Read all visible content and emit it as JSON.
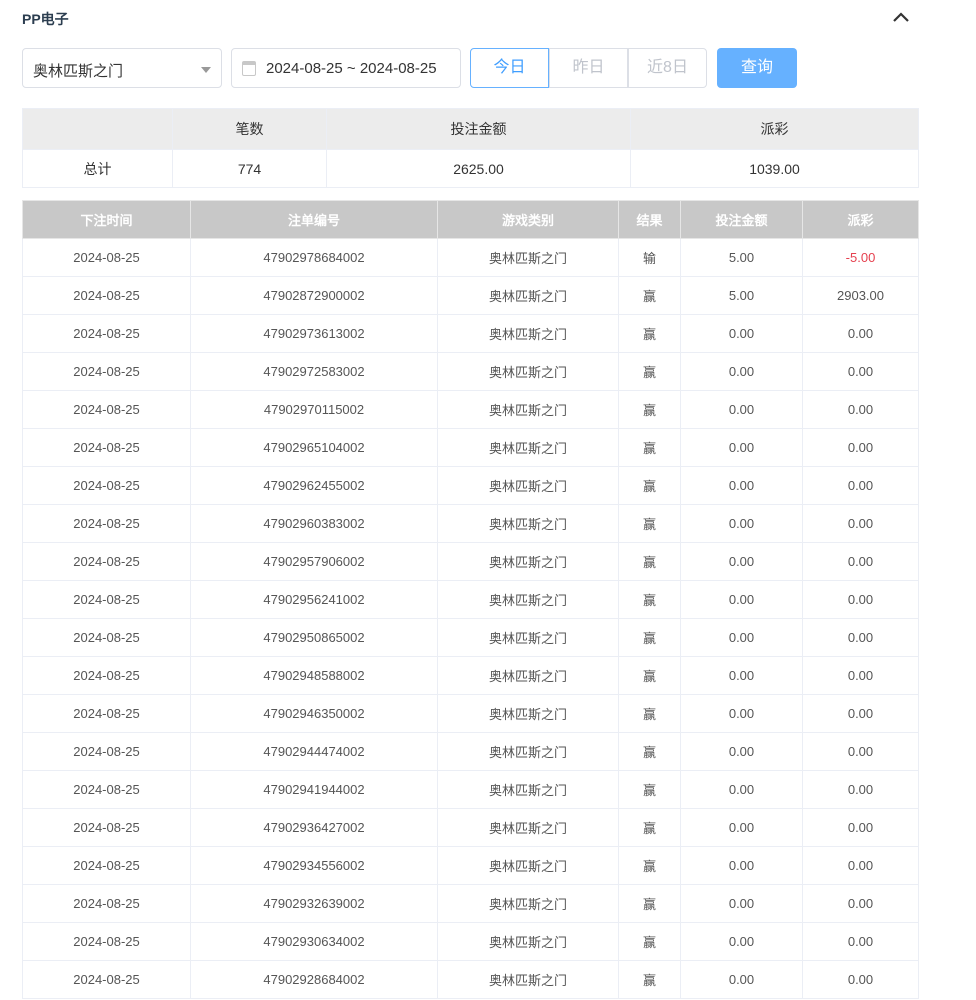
{
  "header": {
    "title": "PP电子",
    "collapse_icon": "chevron-up-icon"
  },
  "filters": {
    "game_select": "奥林匹斯之门",
    "date_range": "2024-08-25 ~ 2024-08-25",
    "quick": [
      "今日",
      "昨日",
      "近8日"
    ],
    "active_quick": "今日",
    "query_label": "查询",
    "accent": "#409eff"
  },
  "summary": {
    "headers": [
      "",
      "笔数",
      "投注金额",
      "派彩"
    ],
    "row": [
      "总计",
      "774",
      "2625.00",
      "1039.00"
    ]
  },
  "table": {
    "headers": [
      "下注时间",
      "注单编号",
      "游戏类别",
      "结果",
      "投注金额",
      "派彩"
    ],
    "negative_color": "#e5414f",
    "rows": [
      [
        "2024-08-25",
        "47902978684002",
        "奥林匹斯之门",
        "输",
        "5.00",
        "-5.00"
      ],
      [
        "2024-08-25",
        "47902872900002",
        "奥林匹斯之门",
        "赢",
        "5.00",
        "2903.00"
      ],
      [
        "2024-08-25",
        "47902973613002",
        "奥林匹斯之门",
        "赢",
        "0.00",
        "0.00"
      ],
      [
        "2024-08-25",
        "47902972583002",
        "奥林匹斯之门",
        "赢",
        "0.00",
        "0.00"
      ],
      [
        "2024-08-25",
        "47902970115002",
        "奥林匹斯之门",
        "赢",
        "0.00",
        "0.00"
      ],
      [
        "2024-08-25",
        "47902965104002",
        "奥林匹斯之门",
        "赢",
        "0.00",
        "0.00"
      ],
      [
        "2024-08-25",
        "47902962455002",
        "奥林匹斯之门",
        "赢",
        "0.00",
        "0.00"
      ],
      [
        "2024-08-25",
        "47902960383002",
        "奥林匹斯之门",
        "赢",
        "0.00",
        "0.00"
      ],
      [
        "2024-08-25",
        "47902957906002",
        "奥林匹斯之门",
        "赢",
        "0.00",
        "0.00"
      ],
      [
        "2024-08-25",
        "47902956241002",
        "奥林匹斯之门",
        "赢",
        "0.00",
        "0.00"
      ],
      [
        "2024-08-25",
        "47902950865002",
        "奥林匹斯之门",
        "赢",
        "0.00",
        "0.00"
      ],
      [
        "2024-08-25",
        "47902948588002",
        "奥林匹斯之门",
        "赢",
        "0.00",
        "0.00"
      ],
      [
        "2024-08-25",
        "47902946350002",
        "奥林匹斯之门",
        "赢",
        "0.00",
        "0.00"
      ],
      [
        "2024-08-25",
        "47902944474002",
        "奥林匹斯之门",
        "赢",
        "0.00",
        "0.00"
      ],
      [
        "2024-08-25",
        "47902941944002",
        "奥林匹斯之门",
        "赢",
        "0.00",
        "0.00"
      ],
      [
        "2024-08-25",
        "47902936427002",
        "奥林匹斯之门",
        "赢",
        "0.00",
        "0.00"
      ],
      [
        "2024-08-25",
        "47902934556002",
        "奥林匹斯之门",
        "赢",
        "0.00",
        "0.00"
      ],
      [
        "2024-08-25",
        "47902932639002",
        "奥林匹斯之门",
        "赢",
        "0.00",
        "0.00"
      ],
      [
        "2024-08-25",
        "47902930634002",
        "奥林匹斯之门",
        "赢",
        "0.00",
        "0.00"
      ],
      [
        "2024-08-25",
        "47902928684002",
        "奥林匹斯之门",
        "赢",
        "0.00",
        "0.00"
      ]
    ]
  }
}
